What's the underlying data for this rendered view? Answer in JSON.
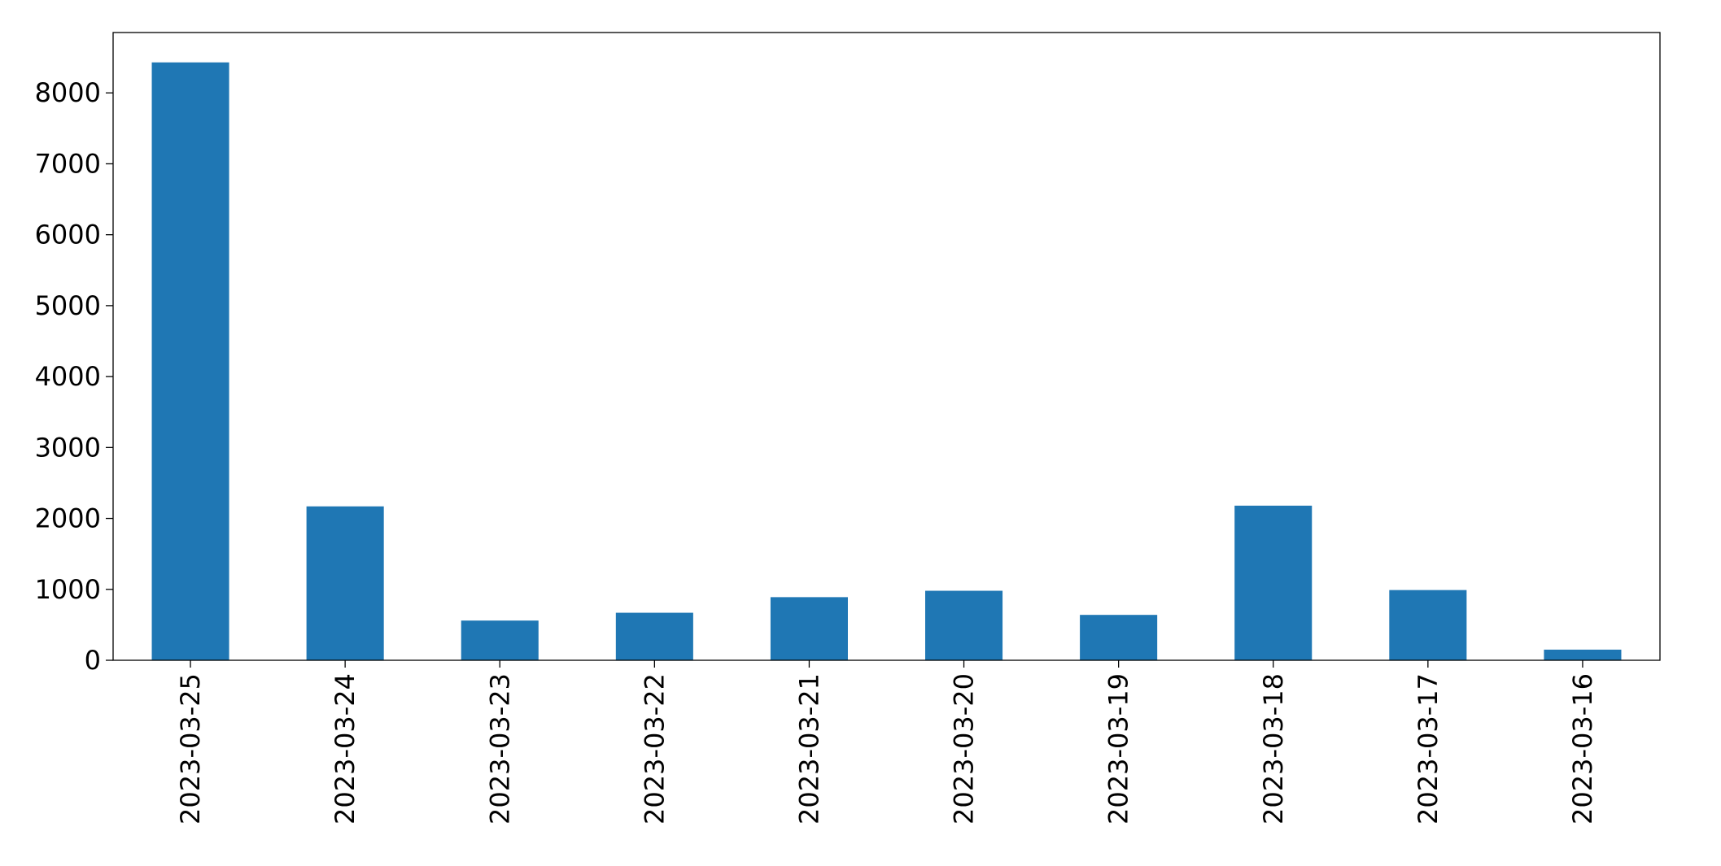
{
  "chart_data": {
    "type": "bar",
    "title": "",
    "xlabel": "",
    "ylabel": "",
    "categories": [
      "2023-03-25",
      "2023-03-24",
      "2023-03-23",
      "2023-03-22",
      "2023-03-21",
      "2023-03-20",
      "2023-03-19",
      "2023-03-18",
      "2023-03-17",
      "2023-03-16"
    ],
    "values": [
      8430,
      2170,
      560,
      670,
      890,
      980,
      640,
      2180,
      990,
      150
    ],
    "ylim": [
      0,
      8851
    ],
    "yticks": [
      0,
      1000,
      2000,
      3000,
      4000,
      5000,
      6000,
      7000,
      8000
    ],
    "ytick_labels": [
      "0",
      "1000",
      "2000",
      "3000",
      "4000",
      "5000",
      "6000",
      "7000",
      "8000"
    ],
    "grid": false,
    "legend": "none",
    "bar_color": "#1f77b4",
    "x_tick_rotation": "vertical"
  }
}
